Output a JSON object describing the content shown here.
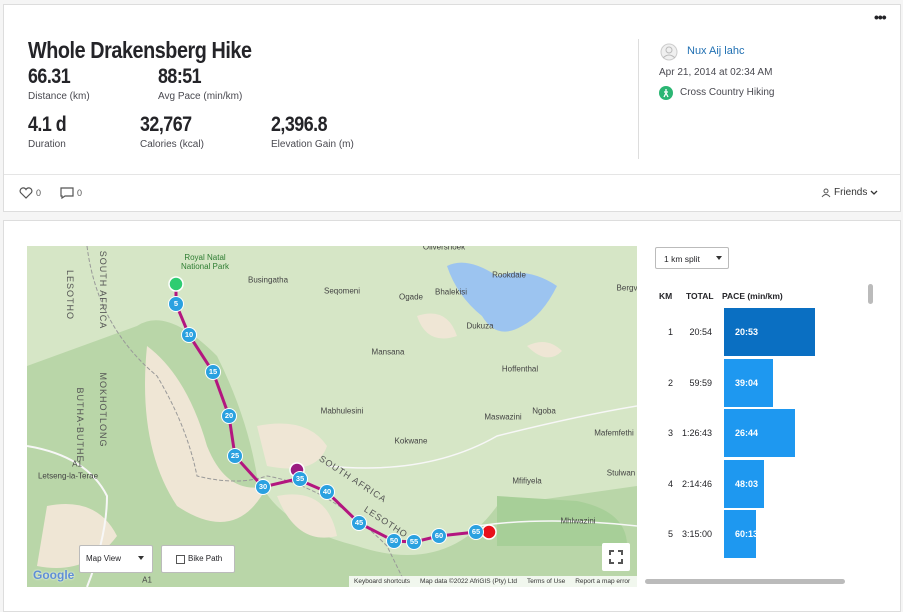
{
  "activity": {
    "title": "Whole Drakensberg Hike",
    "stats": [
      {
        "value": "66.31",
        "label": "Distance (km)"
      },
      {
        "value": "88:51",
        "label": "Avg Pace (min/km)"
      },
      {
        "value": "4.1 d",
        "label": "Duration"
      },
      {
        "value": "32,767",
        "label": "Calories (kcal)"
      },
      {
        "value": "2,396.8",
        "label": "Elevation Gain (m)"
      }
    ]
  },
  "athlete": {
    "name": "Nux Aij lahc",
    "date": "Apr 21, 2014 at 02:34 AM",
    "sport": "Cross Country Hiking"
  },
  "social": {
    "likes": "0",
    "comments": "0",
    "visibility": "Friends"
  },
  "map": {
    "places": [
      "Royal Natal National Park",
      "Busingatha",
      "Seqomeni",
      "Ogade",
      "Bhalekisi",
      "Rookdale",
      "Dukuza",
      "Mansana",
      "Hoffenthal",
      "Mabhulesini",
      "Maswazini",
      "Ngoba",
      "Kokwane",
      "Mafemfethi",
      "Stulwan",
      "Mfifiyela",
      "Mhlwazini",
      "SOUTH AFRICA",
      "LESOTHO",
      "LESOTHO",
      "SOUTH AFRICA",
      "MOKHOTLONG",
      "BUTHA-BUTHE",
      "Letseng-la-Terae",
      "Olivershoek",
      "Bergv",
      "A1",
      "A1"
    ],
    "km_markers": [
      "5",
      "10",
      "15",
      "20",
      "25",
      "30",
      "35",
      "40",
      "45",
      "50",
      "55",
      "60",
      "65"
    ],
    "view": "Map View",
    "bike_path": "Bike Path",
    "logo": "Google",
    "attribution": [
      "Keyboard shortcuts",
      "Map data ©2022 AfriGIS (Pty) Ltd",
      "Terms of Use",
      "Report a map error"
    ]
  },
  "splits": {
    "selector": "1 km split",
    "columns": [
      "KM",
      "TOTAL",
      "PACE (min/km)"
    ],
    "rows": [
      [
        "1",
        "20:54",
        "20:53"
      ],
      [
        "2",
        "59:59",
        "39:04"
      ],
      [
        "3",
        "1:26:43",
        "26:44"
      ],
      [
        "4",
        "2:14:46",
        "48:03"
      ],
      [
        "5",
        "3:15:00",
        "60:13"
      ]
    ]
  }
}
